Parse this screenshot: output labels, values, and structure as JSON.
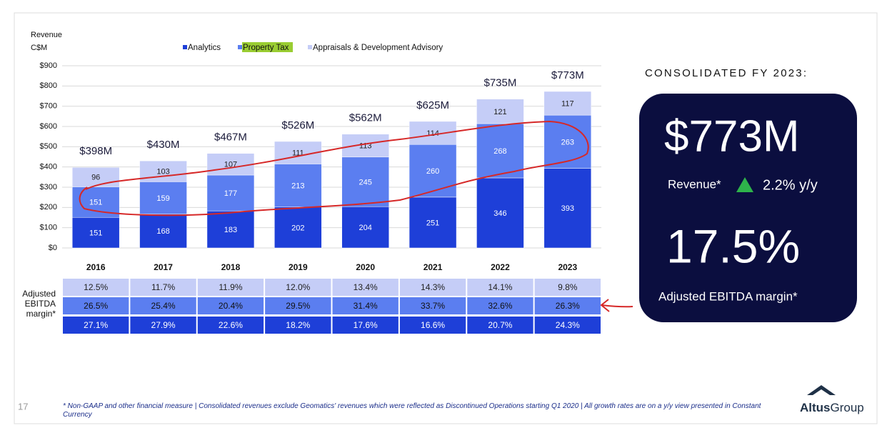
{
  "chart_data": {
    "type": "stacked_bar",
    "ylabel": [
      "Revenue",
      "C$M"
    ],
    "categories": [
      "2016",
      "2017",
      "2018",
      "2019",
      "2020",
      "2021",
      "2022",
      "2023"
    ],
    "series": [
      {
        "name": "Analytics",
        "color": "#1e3fd8",
        "text_color": "#ffffff",
        "values": [
          151,
          168,
          183,
          202,
          204,
          251,
          346,
          393
        ]
      },
      {
        "name": "Property Tax",
        "color": "#5b7ef0",
        "text_color": "#ffffff",
        "values": [
          151,
          159,
          177,
          213,
          245,
          260,
          268,
          263
        ]
      },
      {
        "name": "Appraisals & Development Advisory",
        "color": "#c5cdf7",
        "text_color": "#222222",
        "values": [
          96,
          103,
          107,
          111,
          113,
          114,
          121,
          117
        ]
      }
    ],
    "totals": {
      "values": [
        398,
        430,
        467,
        526,
        562,
        625,
        735,
        773
      ],
      "value_labels": [
        "$398M",
        "$430M",
        "$467M",
        "$526M",
        "$562M",
        "$625M",
        "$735M",
        "$773M"
      ]
    },
    "ylim": [
      0,
      900
    ],
    "yticks": [
      {
        "value": 0,
        "label": "$0"
      },
      {
        "value": 100,
        "label": "$100"
      },
      {
        "value": 200,
        "label": "$200"
      },
      {
        "value": 300,
        "label": "$300"
      },
      {
        "value": 400,
        "label": "$400"
      },
      {
        "value": 500,
        "label": "$500"
      },
      {
        "value": 600,
        "label": "$600"
      },
      {
        "value": 700,
        "label": "$700"
      },
      {
        "value": 800,
        "label": "$800"
      },
      {
        "value": 900,
        "label": "$900"
      }
    ],
    "grid": true
  },
  "ebitda_table": {
    "label": "Adjusted EBITDA margin*",
    "rows": [
      [
        "12.5%",
        "11.7%",
        "11.9%",
        "12.0%",
        "13.4%",
        "14.3%",
        "14.1%",
        "9.8%"
      ],
      [
        "26.5%",
        "25.4%",
        "20.4%",
        "29.5%",
        "31.4%",
        "33.7%",
        "32.6%",
        "26.3%"
      ],
      [
        "27.1%",
        "27.9%",
        "22.6%",
        "18.2%",
        "17.6%",
        "16.6%",
        "20.7%",
        "24.3%"
      ]
    ]
  },
  "summary": {
    "heading": "CONSOLIDATED FY 2023:",
    "revenue": "$773M",
    "revenue_label": "Revenue*",
    "growth": "2.2% y/y",
    "margin": "17.5%",
    "margin_label": "Adjusted EBITDA margin*"
  },
  "footer": {
    "page": "17",
    "note": "* Non-GAAP and other financial measure | Consolidated revenues exclude Geomatics' revenues which were reflected as Discontinued Operations starting Q1 2020 | All growth rates are on a y/y view presented in Constant Currency",
    "logo_a": "Altus",
    "logo_b": "Group"
  }
}
